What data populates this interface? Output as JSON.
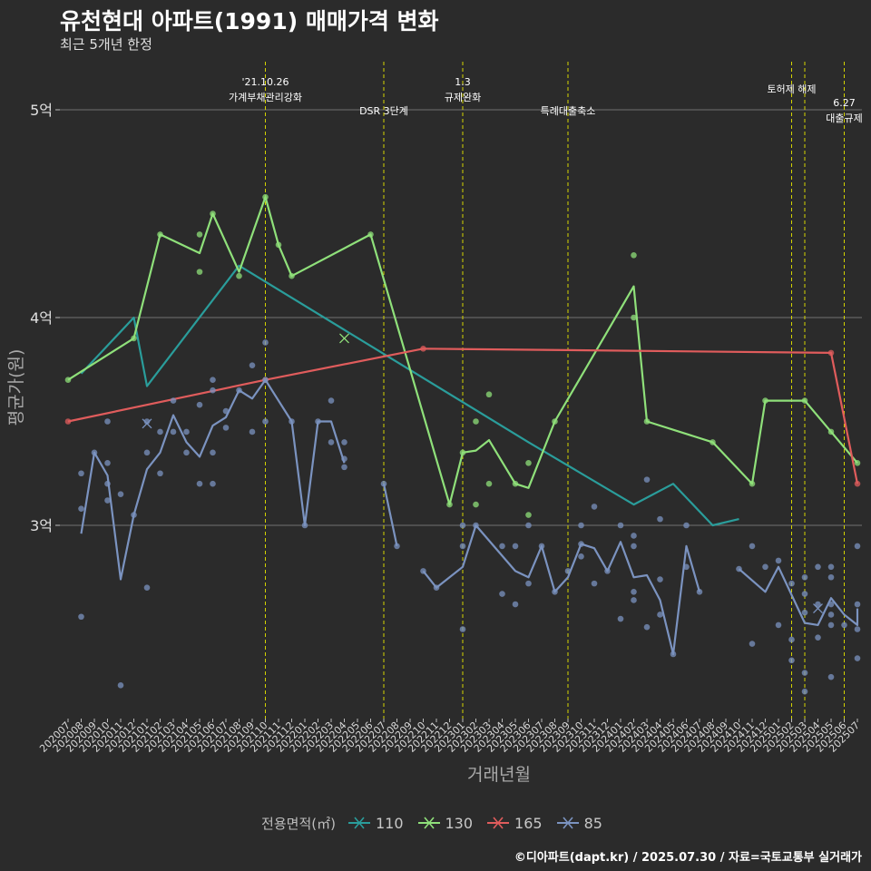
{
  "title": "유천현대 아파트(1991) 매매가격 변화",
  "subtitle": "최근 5개년 한정",
  "caption": "©디아파트(dapt.kr) / 2025.07.30 / 자료=국토교통부 실거래가",
  "chart_data": {
    "type": "line",
    "xlabel": "거래년월",
    "ylabel": "평균가(원)",
    "ylim": [
      2.1,
      5.3
    ],
    "y_ticks": [
      {
        "value": 3,
        "label": "3억"
      },
      {
        "value": 4,
        "label": "4억"
      },
      {
        "value": 5,
        "label": "5억"
      }
    ],
    "x_categories": [
      "202007",
      "202008",
      "202009",
      "202010",
      "202011",
      "202012",
      "202101",
      "202102",
      "202103",
      "202104",
      "202105",
      "202106",
      "202107",
      "202108",
      "202109",
      "202110",
      "202111",
      "202112",
      "202201",
      "202202",
      "202203",
      "202204",
      "202205",
      "202206",
      "202207",
      "202208",
      "202209",
      "202210",
      "202211",
      "202212",
      "202301",
      "202302",
      "202303",
      "202304",
      "202305",
      "202306",
      "202307",
      "202308",
      "202309",
      "202310",
      "202311",
      "202312",
      "202401",
      "202402",
      "202403",
      "202404",
      "202405",
      "202406",
      "202407",
      "202408",
      "202409",
      "202410",
      "202411",
      "202412",
      "202501",
      "202502",
      "202503",
      "202504",
      "202505",
      "202506",
      "202507"
    ],
    "legend_title": "전용면적(㎡)",
    "series": [
      {
        "name": "110",
        "color": "#2a9d9b",
        "marker": "x",
        "line": [
          [
            "202008",
            3.73
          ],
          [
            "202012",
            4.0
          ],
          [
            "202101",
            3.67
          ],
          [
            "202108",
            4.25
          ],
          [
            "202306",
            3.4
          ],
          [
            "202402",
            3.1
          ],
          [
            "202405",
            3.2
          ],
          [
            "202408",
            3.0
          ],
          [
            "202410",
            3.03
          ]
        ],
        "points": []
      },
      {
        "name": "130",
        "color": "#8fe07a",
        "marker": "x",
        "line": [
          [
            "202007",
            3.7
          ],
          [
            "202012",
            3.9
          ],
          [
            "202102",
            4.4
          ],
          [
            "202105",
            4.31
          ],
          [
            "202106",
            4.5
          ],
          [
            "202108",
            4.22
          ],
          [
            "202110",
            4.58
          ],
          [
            "202111",
            4.35
          ],
          [
            "202112",
            4.2
          ],
          [
            "202206",
            4.4
          ],
          [
            "202212",
            3.1
          ],
          [
            "202301",
            3.35
          ],
          [
            "202302",
            3.36
          ],
          [
            "202303",
            3.41
          ],
          [
            "202305",
            3.2
          ],
          [
            "202306",
            3.18
          ],
          [
            "202308",
            3.5
          ],
          [
            "202402",
            4.15
          ],
          [
            "202403",
            3.5
          ],
          [
            "202408",
            3.4
          ],
          [
            "202411",
            3.2
          ],
          [
            "202412",
            3.6
          ],
          [
            "202503",
            3.6
          ],
          [
            "202505",
            3.45
          ],
          [
            "202507",
            3.3
          ]
        ],
        "points": [
          [
            "202007",
            3.7
          ],
          [
            "202012",
            3.9
          ],
          [
            "202102",
            4.4
          ],
          [
            "202105",
            4.4
          ],
          [
            "202105",
            4.22
          ],
          [
            "202106",
            4.5
          ],
          [
            "202108",
            4.2
          ],
          [
            "202110",
            4.58
          ],
          [
            "202111",
            4.35
          ],
          [
            "202112",
            4.2
          ],
          [
            "202206",
            4.4
          ],
          [
            "202212",
            3.1
          ],
          [
            "202301",
            3.35
          ],
          [
            "202302",
            3.5
          ],
          [
            "202302",
            3.1
          ],
          [
            "202303",
            3.63
          ],
          [
            "202303",
            3.2
          ],
          [
            "202305",
            3.2
          ],
          [
            "202306",
            3.3
          ],
          [
            "202306",
            3.05
          ],
          [
            "202308",
            3.5
          ],
          [
            "202402",
            4.3
          ],
          [
            "202402",
            4.0
          ],
          [
            "202403",
            3.5
          ],
          [
            "202408",
            3.4
          ],
          [
            "202411",
            3.2
          ],
          [
            "202412",
            3.6
          ],
          [
            "202503",
            3.6
          ],
          [
            "202505",
            3.45
          ],
          [
            "202507",
            3.3
          ]
        ],
        "crosses": [
          [
            "202204",
            3.9
          ]
        ]
      },
      {
        "name": "165",
        "color": "#e05c5c",
        "marker": "x",
        "line": [
          [
            "202007",
            3.5
          ],
          [
            "202110",
            3.7
          ],
          [
            "202210",
            3.85
          ],
          [
            "202505",
            3.83
          ],
          [
            "202507",
            3.2
          ]
        ],
        "points": [
          [
            "202007",
            3.5
          ],
          [
            "202110",
            3.7
          ],
          [
            "202210",
            3.85
          ],
          [
            "202505",
            3.83
          ],
          [
            "202507",
            3.2
          ]
        ]
      },
      {
        "name": "85",
        "color": "#7b93c0",
        "marker": "x",
        "line": [
          [
            "202008",
            2.96
          ],
          [
            "202009",
            3.35
          ],
          [
            "202010",
            3.24
          ],
          [
            "202011",
            2.74
          ],
          [
            "202012",
            3.05
          ],
          [
            "202101",
            3.27
          ],
          [
            "202102",
            3.35
          ],
          [
            "202103",
            3.53
          ],
          [
            "202104",
            3.4
          ],
          [
            "202105",
            3.33
          ],
          [
            "202106",
            3.48
          ],
          [
            "202107",
            3.52
          ],
          [
            "202108",
            3.65
          ],
          [
            "202109",
            3.61
          ],
          [
            "202110",
            3.7
          ],
          [
            "202112",
            3.5
          ],
          [
            "202201",
            3.0
          ],
          [
            "202202",
            3.5
          ],
          [
            "202203",
            3.5
          ],
          [
            "202204",
            3.3
          ],
          null,
          [
            "202207",
            3.2
          ],
          [
            "202208",
            2.9
          ],
          null,
          [
            "202210",
            2.78
          ],
          [
            "202211",
            2.7
          ],
          [
            "202301",
            2.8
          ],
          [
            "202302",
            3.0
          ],
          [
            "202305",
            2.78
          ],
          [
            "202306",
            2.75
          ],
          [
            "202307",
            2.9
          ],
          [
            "202308",
            2.68
          ],
          [
            "202309",
            2.75
          ],
          [
            "202310",
            2.91
          ],
          [
            "202311",
            2.89
          ],
          [
            "202312",
            2.78
          ],
          [
            "202401",
            2.92
          ],
          [
            "202402",
            2.75
          ],
          [
            "202403",
            2.76
          ],
          [
            "202404",
            2.64
          ],
          [
            "202405",
            2.38
          ],
          [
            "202406",
            2.9
          ],
          [
            "202407",
            2.68
          ],
          null,
          [
            "202410",
            2.79
          ],
          [
            "202412",
            2.68
          ],
          [
            "202501",
            2.8
          ],
          [
            "202503",
            2.53
          ],
          [
            "202504",
            2.52
          ],
          [
            "202505",
            2.65
          ],
          [
            "202506",
            2.57
          ],
          [
            "202507",
            2.52
          ],
          [
            "202507",
            2.6
          ]
        ],
        "points": [
          [
            "202008",
            2.56
          ],
          [
            "202008",
            3.08
          ],
          [
            "202008",
            3.25
          ],
          [
            "202009",
            3.35
          ],
          [
            "202010",
            3.5
          ],
          [
            "202010",
            3.3
          ],
          [
            "202010",
            3.2
          ],
          [
            "202010",
            3.12
          ],
          [
            "202011",
            3.15
          ],
          [
            "202011",
            2.23
          ],
          [
            "202012",
            3.05
          ],
          [
            "202101",
            2.7
          ],
          [
            "202101",
            3.35
          ],
          [
            "202101",
            3.5
          ],
          [
            "202102",
            3.25
          ],
          [
            "202102",
            3.45
          ],
          [
            "202103",
            3.6
          ],
          [
            "202103",
            3.45
          ],
          [
            "202104",
            3.45
          ],
          [
            "202104",
            3.35
          ],
          [
            "202105",
            3.2
          ],
          [
            "202105",
            3.58
          ],
          [
            "202106",
            3.7
          ],
          [
            "202106",
            3.65
          ],
          [
            "202106",
            3.35
          ],
          [
            "202106",
            3.2
          ],
          [
            "202107",
            3.47
          ],
          [
            "202107",
            3.55
          ],
          [
            "202108",
            3.65
          ],
          [
            "202109",
            3.77
          ],
          [
            "202109",
            3.45
          ],
          [
            "202110",
            3.88
          ],
          [
            "202110",
            3.7
          ],
          [
            "202110",
            3.5
          ],
          [
            "202112",
            3.5
          ],
          [
            "202201",
            3.0
          ],
          [
            "202202",
            3.5
          ],
          [
            "202203",
            3.6
          ],
          [
            "202203",
            3.4
          ],
          [
            "202204",
            3.4
          ],
          [
            "202204",
            3.32
          ],
          [
            "202204",
            3.28
          ],
          [
            "202207",
            3.2
          ],
          [
            "202208",
            2.9
          ],
          [
            "202210",
            2.78
          ],
          [
            "202211",
            2.7
          ],
          [
            "202301",
            3.0
          ],
          [
            "202301",
            2.9
          ],
          [
            "202301",
            2.5
          ],
          [
            "202302",
            3.0
          ],
          [
            "202304",
            2.9
          ],
          [
            "202304",
            2.67
          ],
          [
            "202305",
            2.9
          ],
          [
            "202305",
            2.62
          ],
          [
            "202306",
            3.0
          ],
          [
            "202306",
            2.72
          ],
          [
            "202307",
            2.9
          ],
          [
            "202308",
            2.68
          ],
          [
            "202309",
            2.78
          ],
          [
            "202310",
            2.91
          ],
          [
            "202310",
            3.0
          ],
          [
            "202310",
            2.85
          ],
          [
            "202311",
            3.09
          ],
          [
            "202311",
            2.72
          ],
          [
            "202312",
            2.78
          ],
          [
            "202401",
            3.0
          ],
          [
            "202401",
            2.55
          ],
          [
            "202402",
            2.95
          ],
          [
            "202402",
            2.9
          ],
          [
            "202402",
            2.68
          ],
          [
            "202402",
            2.64
          ],
          [
            "202403",
            3.22
          ],
          [
            "202403",
            2.51
          ],
          [
            "202404",
            3.03
          ],
          [
            "202404",
            2.74
          ],
          [
            "202404",
            2.57
          ],
          [
            "202405",
            2.38
          ],
          [
            "202406",
            3.0
          ],
          [
            "202406",
            2.8
          ],
          [
            "202407",
            2.68
          ],
          [
            "202410",
            2.79
          ],
          [
            "202411",
            2.9
          ],
          [
            "202411",
            2.43
          ],
          [
            "202412",
            2.8
          ],
          [
            "202501",
            2.83
          ],
          [
            "202501",
            2.52
          ],
          [
            "202502",
            2.72
          ],
          [
            "202502",
            2.45
          ],
          [
            "202502",
            2.35
          ],
          [
            "202503",
            2.75
          ],
          [
            "202503",
            2.67
          ],
          [
            "202503",
            2.58
          ],
          [
            "202503",
            2.29
          ],
          [
            "202503",
            2.2
          ],
          [
            "202504",
            2.8
          ],
          [
            "202504",
            2.62
          ],
          [
            "202504",
            2.46
          ],
          [
            "202505",
            2.8
          ],
          [
            "202505",
            2.75
          ],
          [
            "202505",
            2.62
          ],
          [
            "202505",
            2.57
          ],
          [
            "202505",
            2.52
          ],
          [
            "202505",
            2.27
          ],
          [
            "202506",
            2.52
          ],
          [
            "202507",
            2.9
          ],
          [
            "202507",
            2.62
          ],
          [
            "202507",
            2.5
          ],
          [
            "202507",
            2.36
          ]
        ],
        "crosses": [
          [
            "202101",
            3.49
          ],
          [
            "202504",
            2.6
          ]
        ]
      }
    ],
    "annotations": [
      {
        "x": "202110",
        "lines": [
          "'21.10.26",
          "가계부채관리강화"
        ],
        "row": 0
      },
      {
        "x": "202207",
        "lines": [
          "DSR 3단계"
        ],
        "row": 1
      },
      {
        "x": "202301",
        "lines": [
          "1.3",
          "규제완화"
        ],
        "row": 0
      },
      {
        "x": "202309",
        "lines": [
          "특례대출축소"
        ],
        "row": 1
      },
      {
        "x": "202502",
        "lines": [
          "토허제 해제"
        ],
        "row": 0
      },
      {
        "x": "202503",
        "lines": [],
        "row": 0
      },
      {
        "x": "202506",
        "lines": [
          "6.27",
          "대출규제"
        ],
        "row": 2
      }
    ]
  }
}
